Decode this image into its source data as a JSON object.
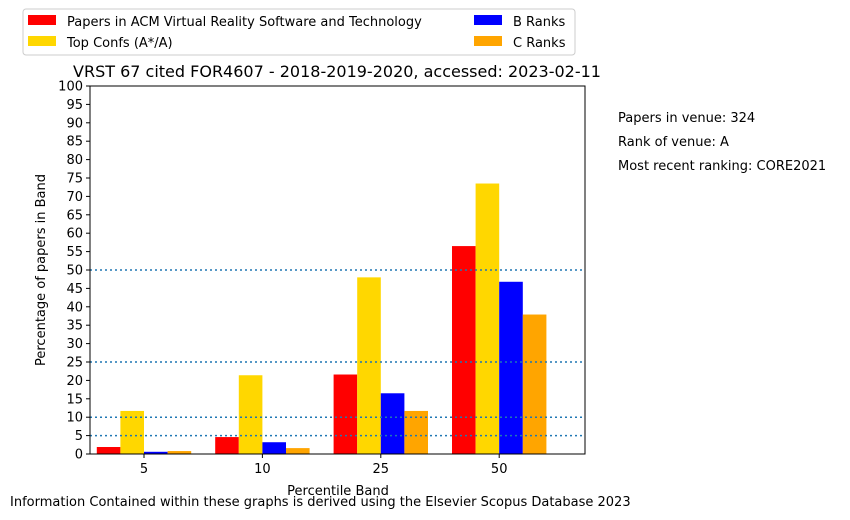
{
  "chart_data": {
    "type": "bar",
    "title": "VRST 67 cited FOR4607 - 2018-2019-2020, accessed: 2023-02-11",
    "xlabel": "Percentile Band",
    "ylabel": "Percentage of papers in Band",
    "categories": [
      "5",
      "10",
      "25",
      "50"
    ],
    "ylim": [
      0,
      100
    ],
    "yticks": [
      0,
      5,
      10,
      15,
      20,
      25,
      30,
      35,
      40,
      45,
      50,
      55,
      60,
      65,
      70,
      75,
      80,
      85,
      90,
      95,
      100
    ],
    "reference_lines": [
      5,
      10,
      25,
      50
    ],
    "legend_position": "top-left, outside plot, 2 columns",
    "series": [
      {
        "name": "Papers in ACM Virtual Reality Software and Technology",
        "color": "#ff0000",
        "values": [
          1.9,
          4.6,
          21.6,
          56.5
        ]
      },
      {
        "name": "Top Confs (A*/A)",
        "color": "#ffd700",
        "values": [
          11.7,
          21.4,
          48.0,
          73.5
        ]
      },
      {
        "name": "B Ranks",
        "color": "#0000ff",
        "values": [
          0.6,
          3.2,
          16.5,
          46.8
        ]
      },
      {
        "name": "C Ranks",
        "color": "#ffa500",
        "values": [
          0.8,
          1.6,
          11.7,
          37.9
        ]
      }
    ]
  },
  "side_notes": {
    "papers": "Papers in venue: 324",
    "rank": "Rank of venue: A",
    "ranking": "Most recent ranking: CORE2021"
  },
  "footer": "Information Contained within these graphs is derived using the Elsevier Scopus Database 2023"
}
